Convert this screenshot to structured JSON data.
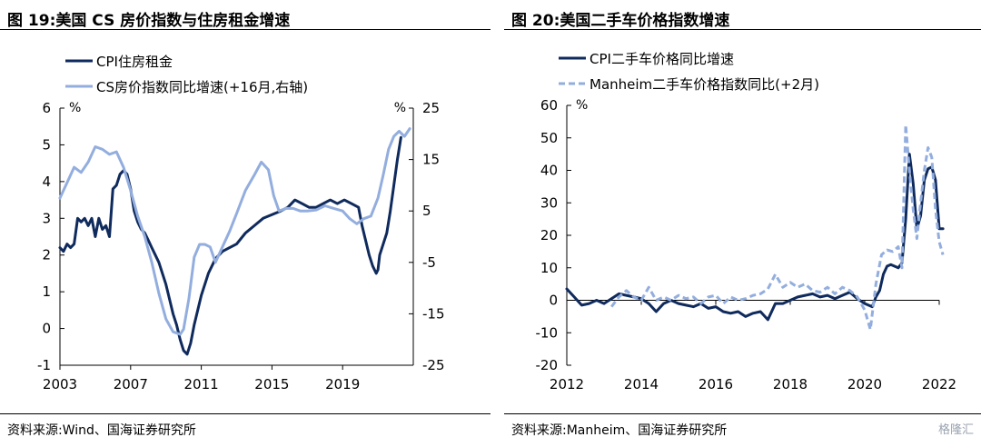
{
  "panels": [
    {
      "title": "图 19:美国 CS 房价指数与住房租金增速",
      "source": "资料来源:Wind、国海证券研究所"
    },
    {
      "title": "图 20:美国二手车价格指数增速",
      "source": "资料来源:Manheim、国海证券研究所"
    }
  ],
  "watermark": "格隆汇",
  "chart_data": [
    {
      "type": "line",
      "title": "图 19:美国 CS 房价指数与住房租金增速",
      "y_unit": "%",
      "y2_unit": "%",
      "ylim": [
        -1,
        6
      ],
      "yticks": [
        -1,
        0,
        1,
        2,
        3,
        4,
        5,
        6
      ],
      "y2lim": [
        -25,
        25
      ],
      "y2ticks": [
        -25,
        -15,
        -5,
        5,
        15,
        25
      ],
      "xlim": [
        2003,
        2023
      ],
      "xticks": [
        "2003",
        "2007",
        "2011",
        "2015",
        "2019"
      ],
      "legend_position": "top-left",
      "series": [
        {
          "name": "CPI住房租金",
          "color": "#0f2a5c",
          "axis": "left",
          "x": [
            2003.0,
            2003.2,
            2003.4,
            2003.6,
            2003.8,
            2004.0,
            2004.2,
            2004.4,
            2004.6,
            2004.8,
            2005.0,
            2005.2,
            2005.4,
            2005.6,
            2005.8,
            2006.0,
            2006.2,
            2006.4,
            2006.6,
            2006.8,
            2007.0,
            2007.2,
            2007.4,
            2007.6,
            2007.8,
            2008.0,
            2008.2,
            2008.4,
            2008.6,
            2008.8,
            2009.0,
            2009.2,
            2009.4,
            2009.6,
            2009.8,
            2010.0,
            2010.2,
            2010.4,
            2010.6,
            2010.8,
            2011.0,
            2011.4,
            2011.8,
            2012.2,
            2012.6,
            2013.0,
            2013.5,
            2014.0,
            2014.5,
            2015.0,
            2015.5,
            2015.9,
            2016.3,
            2016.7,
            2017.1,
            2017.5,
            2017.9,
            2018.3,
            2018.7,
            2019.1,
            2019.5,
            2019.9,
            2020.1,
            2020.3,
            2020.5,
            2020.7,
            2020.9,
            2021.0,
            2021.1,
            2021.3,
            2021.5,
            2021.7,
            2021.9,
            2022.1,
            2022.3
          ],
          "values": [
            2.2,
            2.1,
            2.3,
            2.2,
            2.3,
            3.0,
            2.9,
            3.0,
            2.8,
            3.0,
            2.5,
            3.0,
            2.7,
            2.8,
            2.5,
            3.8,
            3.9,
            4.2,
            4.3,
            4.2,
            3.8,
            3.2,
            2.9,
            2.7,
            2.6,
            2.4,
            2.2,
            2.0,
            1.8,
            1.5,
            1.2,
            0.8,
            0.4,
            0.1,
            -0.3,
            -0.6,
            -0.7,
            -0.4,
            0.1,
            0.5,
            0.9,
            1.5,
            1.9,
            2.1,
            2.2,
            2.3,
            2.6,
            2.8,
            3.0,
            3.1,
            3.2,
            3.3,
            3.5,
            3.4,
            3.3,
            3.3,
            3.4,
            3.5,
            3.4,
            3.5,
            3.4,
            3.3,
            2.8,
            2.4,
            2.0,
            1.7,
            1.5,
            1.6,
            2.0,
            2.3,
            2.6,
            3.2,
            3.9,
            4.6,
            5.2
          ]
        },
        {
          "name": "CS房价指数同比增速(+16月,右轴)",
          "color": "#93aede",
          "axis": "right",
          "x": [
            2003.0,
            2003.4,
            2003.8,
            2004.2,
            2004.6,
            2005.0,
            2005.4,
            2005.8,
            2006.2,
            2006.6,
            2007.0,
            2007.4,
            2007.8,
            2008.2,
            2008.6,
            2009.0,
            2009.4,
            2009.8,
            2010.0,
            2010.3,
            2010.6,
            2010.9,
            2011.2,
            2011.5,
            2011.8,
            2012.2,
            2012.6,
            2013.0,
            2013.5,
            2014.0,
            2014.4,
            2014.8,
            2015.1,
            2015.4,
            2015.8,
            2016.2,
            2016.6,
            2017.0,
            2017.5,
            2018.0,
            2018.5,
            2019.0,
            2019.4,
            2019.8,
            2020.2,
            2020.6,
            2021.0,
            2021.3,
            2021.6,
            2021.9,
            2022.2,
            2022.5,
            2022.8
          ],
          "values": [
            7.5,
            10.5,
            13.5,
            12.5,
            14.5,
            17.5,
            17.0,
            16.0,
            16.5,
            13.5,
            9.0,
            4.0,
            0.0,
            -5.0,
            -11.0,
            -16.0,
            -18.5,
            -19.0,
            -18.0,
            -12.0,
            -4.0,
            -1.5,
            -1.5,
            -2.0,
            -5.0,
            -2.0,
            1.0,
            4.5,
            9.0,
            12.0,
            14.5,
            13.0,
            8.0,
            5.0,
            5.5,
            5.5,
            5.0,
            5.0,
            5.2,
            6.0,
            5.5,
            5.0,
            3.5,
            2.5,
            3.5,
            4.0,
            7.5,
            12.0,
            17.0,
            19.5,
            20.5,
            19.5,
            21.0
          ]
        }
      ]
    },
    {
      "type": "line",
      "title": "图 20:美国二手车价格指数增速",
      "y_unit": "%",
      "ylim": [
        -20,
        60
      ],
      "yticks": [
        -20,
        -10,
        0,
        10,
        20,
        30,
        40,
        50,
        60
      ],
      "xlim": [
        2012,
        2022
      ],
      "xticks": [
        "2012",
        "2014",
        "2016",
        "2018",
        "2020",
        "2022"
      ],
      "legend_position": "top-left",
      "series": [
        {
          "name": "CPI二手车价格同比增速",
          "color": "#0f2a5c",
          "dash": "solid",
          "x": [
            2012.0,
            2012.2,
            2012.4,
            2012.6,
            2012.8,
            2013.0,
            2013.2,
            2013.4,
            2013.6,
            2013.8,
            2014.0,
            2014.2,
            2014.4,
            2014.6,
            2014.8,
            2015.0,
            2015.2,
            2015.4,
            2015.6,
            2015.8,
            2016.0,
            2016.2,
            2016.4,
            2016.6,
            2016.8,
            2017.0,
            2017.2,
            2017.4,
            2017.6,
            2017.8,
            2018.0,
            2018.2,
            2018.4,
            2018.6,
            2018.8,
            2019.0,
            2019.2,
            2019.4,
            2019.6,
            2019.8,
            2020.0,
            2020.2,
            2020.3,
            2020.4,
            2020.5,
            2020.6,
            2020.7,
            2020.8,
            2020.9,
            2021.0,
            2021.1,
            2021.2,
            2021.3,
            2021.4,
            2021.5,
            2021.6,
            2021.7,
            2021.8,
            2021.9,
            2022.0,
            2022.1
          ],
          "values": [
            3.5,
            1.0,
            -1.5,
            -1.0,
            0.0,
            -1.0,
            0.5,
            2.0,
            1.5,
            1.0,
            0.5,
            -1.0,
            -3.5,
            -1.0,
            0.0,
            -1.0,
            -1.5,
            -2.0,
            -1.0,
            -2.5,
            -2.0,
            -3.5,
            -4.0,
            -3.5,
            -5.0,
            -4.0,
            -3.5,
            -6.0,
            -1.0,
            -1.0,
            0.0,
            1.0,
            1.5,
            2.0,
            1.0,
            1.5,
            0.5,
            1.5,
            2.5,
            0.5,
            -1.0,
            -2.0,
            1.0,
            3.0,
            8.0,
            10.5,
            11.0,
            10.5,
            10.0,
            11.5,
            25.0,
            45.0,
            36.0,
            22.0,
            26.0,
            37.0,
            40.5,
            41.0,
            37.0,
            22.0,
            22.0
          ]
        },
        {
          "name": "Manheim二手车价格指数同比(+2月)",
          "color": "#93aede",
          "dash": "dashed",
          "x": [
            2013.2,
            2013.4,
            2013.6,
            2013.8,
            2014.0,
            2014.2,
            2014.4,
            2014.6,
            2014.8,
            2015.0,
            2015.2,
            2015.4,
            2015.6,
            2015.8,
            2016.0,
            2016.2,
            2016.4,
            2016.6,
            2016.8,
            2017.0,
            2017.2,
            2017.4,
            2017.6,
            2017.8,
            2018.0,
            2018.2,
            2018.4,
            2018.6,
            2018.8,
            2019.0,
            2019.2,
            2019.4,
            2019.6,
            2019.8,
            2020.0,
            2020.15,
            2020.3,
            2020.45,
            2020.6,
            2020.75,
            2020.9,
            2021.0,
            2021.1,
            2021.2,
            2021.3,
            2021.4,
            2021.5,
            2021.6,
            2021.7,
            2021.8,
            2021.9,
            2022.0,
            2022.1
          ],
          "values": [
            -2.0,
            1.0,
            3.0,
            1.0,
            0.0,
            4.0,
            0.0,
            1.0,
            0.0,
            1.5,
            0.5,
            1.0,
            -1.0,
            1.0,
            1.5,
            -1.0,
            1.0,
            0.0,
            0.5,
            1.5,
            2.0,
            3.5,
            8.0,
            4.0,
            5.5,
            4.0,
            5.0,
            3.0,
            2.5,
            4.0,
            2.0,
            4.0,
            3.0,
            1.0,
            -3.0,
            -9.0,
            5.0,
            14.0,
            15.5,
            15.0,
            16.5,
            10.0,
            54.0,
            40.0,
            28.0,
            19.0,
            30.0,
            40.0,
            47.0,
            44.0,
            28.0,
            18.0,
            14.0
          ]
        }
      ]
    }
  ]
}
